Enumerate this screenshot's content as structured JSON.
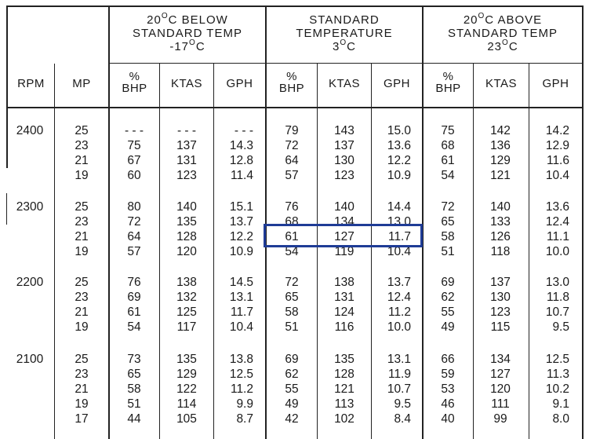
{
  "headers": {
    "groups": [
      {
        "line1": "20",
        "deg": "O",
        "line1_rest": "C BELOW",
        "line2": "STANDARD TEMP",
        "line3": "-17",
        "line3_deg": "O",
        "line3_rest": "C"
      },
      {
        "line1": "STANDARD",
        "deg": "",
        "line1_rest": "",
        "line2": "TEMPERATURE",
        "line3": "3",
        "line3_deg": "O",
        "line3_rest": "C"
      },
      {
        "line1": "20",
        "deg": "O",
        "line1_rest": "C ABOVE",
        "line2": "STANDARD TEMP",
        "line3": "23",
        "line3_deg": "O",
        "line3_rest": "C"
      }
    ],
    "rpm": "RPM",
    "mp": "MP",
    "pct": "%",
    "bhp": "BHP",
    "ktas": "KTAS",
    "gph": "GPH"
  },
  "blocks": [
    {
      "rpm": "2400",
      "rows": [
        {
          "mp": "25",
          "b": [
            "- - -",
            "- - -",
            "- - -"
          ],
          "s": [
            "79",
            "143",
            "15.0"
          ],
          "a": [
            "75",
            "142",
            "14.2"
          ]
        },
        {
          "mp": "23",
          "b": [
            "75",
            "137",
            "14.3"
          ],
          "s": [
            "72",
            "137",
            "13.6"
          ],
          "a": [
            "68",
            "136",
            "12.9"
          ]
        },
        {
          "mp": "21",
          "b": [
            "67",
            "131",
            "12.8"
          ],
          "s": [
            "64",
            "130",
            "12.2"
          ],
          "a": [
            "61",
            "129",
            "11.6"
          ]
        },
        {
          "mp": "19",
          "b": [
            "60",
            "123",
            "11.4"
          ],
          "s": [
            "57",
            "123",
            "10.9"
          ],
          "a": [
            "54",
            "121",
            "10.4"
          ]
        }
      ]
    },
    {
      "rpm": "2300",
      "rows": [
        {
          "mp": "25",
          "b": [
            "80",
            "140",
            "15.1"
          ],
          "s": [
            "76",
            "140",
            "14.4"
          ],
          "a": [
            "72",
            "140",
            "13.6"
          ]
        },
        {
          "mp": "23",
          "b": [
            "72",
            "135",
            "13.7"
          ],
          "s": [
            "68",
            "134",
            "13.0"
          ],
          "a": [
            "65",
            "133",
            "12.4"
          ]
        },
        {
          "mp": "21",
          "b": [
            "64",
            "128",
            "12.2"
          ],
          "s": [
            "61",
            "127",
            "11.7"
          ],
          "a": [
            "58",
            "126",
            "11.1"
          ]
        },
        {
          "mp": "19",
          "b": [
            "57",
            "120",
            "10.9"
          ],
          "s": [
            "54",
            "119",
            "10.4"
          ],
          "a": [
            "51",
            "118",
            "10.0"
          ]
        }
      ]
    },
    {
      "rpm": "2200",
      "rows": [
        {
          "mp": "25",
          "b": [
            "76",
            "138",
            "14.5"
          ],
          "s": [
            "72",
            "138",
            "13.7"
          ],
          "a": [
            "69",
            "137",
            "13.0"
          ]
        },
        {
          "mp": "23",
          "b": [
            "69",
            "132",
            "13.1"
          ],
          "s": [
            "65",
            "131",
            "12.4"
          ],
          "a": [
            "62",
            "130",
            "11.8"
          ]
        },
        {
          "mp": "21",
          "b": [
            "61",
            "125",
            "11.7"
          ],
          "s": [
            "58",
            "124",
            "11.2"
          ],
          "a": [
            "55",
            "123",
            "10.7"
          ]
        },
        {
          "mp": "19",
          "b": [
            "54",
            "117",
            "10.4"
          ],
          "s": [
            "51",
            "116",
            "10.0"
          ],
          "a": [
            "49",
            "115",
            "9.5"
          ]
        }
      ]
    },
    {
      "rpm": "2100",
      "rows": [
        {
          "mp": "25",
          "b": [
            "73",
            "135",
            "13.8"
          ],
          "s": [
            "69",
            "135",
            "13.1"
          ],
          "a": [
            "66",
            "134",
            "12.5"
          ]
        },
        {
          "mp": "23",
          "b": [
            "65",
            "129",
            "12.5"
          ],
          "s": [
            "62",
            "128",
            "11.9"
          ],
          "a": [
            "59",
            "127",
            "11.3"
          ]
        },
        {
          "mp": "21",
          "b": [
            "58",
            "122",
            "11.2"
          ],
          "s": [
            "55",
            "121",
            "10.7"
          ],
          "a": [
            "53",
            "120",
            "10.2"
          ]
        },
        {
          "mp": "19",
          "b": [
            "51",
            "114",
            "9.9"
          ],
          "s": [
            "49",
            "113",
            "9.5"
          ],
          "a": [
            "46",
            "111",
            "9.1"
          ]
        },
        {
          "mp": "17",
          "b": [
            "44",
            "105",
            "8.7"
          ],
          "s": [
            "42",
            "102",
            "8.4"
          ],
          "a": [
            "40",
            "99",
            "8.0"
          ]
        }
      ]
    }
  ],
  "highlight": {
    "block": 1,
    "row": 2,
    "group": "s",
    "color": "#1f3c96"
  }
}
